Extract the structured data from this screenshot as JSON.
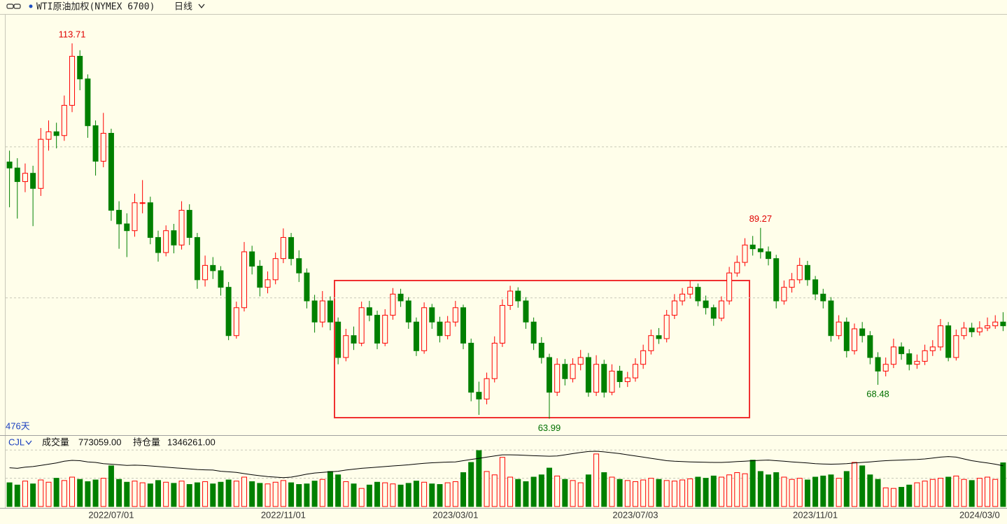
{
  "chart_data": [
    {
      "type": "candlestick",
      "title": "WTI原油加权(NYMEX 6700)",
      "period": "日线",
      "count_label": "476天",
      "categories": [
        null,
        null,
        null,
        null,
        null,
        null,
        null,
        null,
        null,
        null,
        null,
        null,
        null,
        "2022/07/01",
        null,
        null,
        null,
        null,
        null,
        null,
        null,
        null,
        null,
        null,
        null,
        null,
        null,
        null,
        null,
        null,
        null,
        null,
        null,
        null,
        null,
        "2022/11/01",
        null,
        null,
        null,
        null,
        null,
        null,
        null,
        null,
        null,
        null,
        null,
        null,
        null,
        null,
        null,
        null,
        null,
        null,
        null,
        null,
        null,
        "2023/03/01",
        null,
        null,
        null,
        null,
        null,
        null,
        null,
        null,
        null,
        null,
        null,
        null,
        null,
        null,
        null,
        null,
        null,
        null,
        null,
        null,
        null,
        null,
        "2023/07/03",
        null,
        null,
        null,
        null,
        null,
        null,
        null,
        null,
        null,
        null,
        null,
        null,
        null,
        null,
        null,
        null,
        null,
        null,
        null,
        null,
        null,
        null,
        "2023/11/01",
        null,
        null,
        null,
        null,
        null,
        null,
        null,
        null,
        null,
        null,
        null,
        null,
        null,
        null,
        null,
        null,
        null,
        null,
        null,
        null,
        "2024/03/0",
        null,
        null,
        null
      ],
      "open": [
        98,
        97.2,
        95.4,
        96.5,
        94.5,
        101,
        102,
        101.5,
        105.5,
        112,
        109,
        102.8,
        98.1,
        101.8,
        91.6,
        89.8,
        88.9,
        92.6,
        92.6,
        88,
        86,
        88.9,
        87,
        91.6,
        88,
        82.4,
        84.3,
        83.6,
        81.4,
        75,
        78.7,
        86.1,
        84.2,
        81.4,
        82.4,
        85.2,
        88,
        85.2,
        83.3,
        79.6,
        76.8,
        79.6,
        76.8,
        72.1,
        75,
        74,
        78.7,
        77.7,
        74,
        77.7,
        80.5,
        79.6,
        76.8,
        73,
        78.7,
        76.8,
        75,
        76.8,
        78.7,
        74,
        67.5,
        66.6,
        69.3,
        74,
        79,
        80.9,
        79.6,
        76.8,
        74,
        72.1,
        67.5,
        71.2,
        69.3,
        71.2,
        72.1,
        67.5,
        71.2,
        67.5,
        70.3,
        68.9,
        69.4,
        71.2,
        73,
        75,
        74.6,
        77.7,
        79.6,
        80.5,
        81.4,
        79.6,
        78.7,
        77.3,
        79.6,
        83.3,
        84.7,
        87,
        86.5,
        86.1,
        85.2,
        79.6,
        81.4,
        82.4,
        84.3,
        82.4,
        80.5,
        79.6,
        75,
        76.8,
        73,
        75.9,
        75,
        72.1,
        70.3,
        71.2,
        73.5,
        72.6,
        71.2,
        71.6,
        73,
        73.5,
        76.3,
        72.1,
        75,
        76,
        75.5,
        76,
        76.3,
        76.8
      ],
      "high": [
        99.5,
        98.5,
        97.8,
        97.5,
        102.5,
        103.5,
        103.2,
        106.8,
        113.71,
        112.8,
        109.6,
        103.5,
        104.5,
        102.4,
        92.8,
        91.2,
        93.8,
        95.6,
        93.4,
        88.9,
        89.6,
        89.8,
        92.8,
        92.4,
        88.6,
        85.6,
        85.4,
        84.2,
        82.1,
        79.5,
        87.4,
        86.9,
        85,
        83.5,
        86,
        89.2,
        88.6,
        86.3,
        83.9,
        80.4,
        80.9,
        80.2,
        77.4,
        75.9,
        76.2,
        79.5,
        79.6,
        78.3,
        78.5,
        81.3,
        81.2,
        80.1,
        77.4,
        79.4,
        79.2,
        77.5,
        77.6,
        79.6,
        79.1,
        74.6,
        68.9,
        70.1,
        74.9,
        79.8,
        81.6,
        81.4,
        80.1,
        77.4,
        74.8,
        72.6,
        72,
        71.9,
        72,
        73.1,
        72.7,
        72.4,
        71.8,
        71.2,
        71,
        70.2,
        72,
        73.8,
        75.8,
        76,
        78.4,
        80.5,
        81.3,
        82.3,
        81.9,
        80.3,
        79.1,
        80.2,
        84.1,
        85.6,
        87.9,
        88.2,
        89.27,
        86.8,
        85.7,
        82.3,
        83.3,
        85.3,
        84.9,
        82.9,
        81.2,
        80.1,
        77.7,
        77.4,
        76.6,
        76.8,
        75.6,
        72.8,
        72.1,
        74.6,
        74.1,
        73.2,
        72.5,
        73.8,
        74.4,
        77.2,
        76.8,
        75.8,
        76.8,
        76.7,
        76.9,
        77.4,
        77.7,
        78.1
      ],
      "low": [
        92,
        90.5,
        94,
        89.5,
        93.5,
        99.5,
        99.8,
        100.8,
        104.6,
        107.5,
        101.2,
        96.2,
        97.3,
        90.2,
        86.5,
        85.4,
        88.1,
        91.2,
        87.1,
        84.8,
        85.5,
        85.9,
        86.4,
        87,
        81.2,
        81.5,
        82.5,
        80.3,
        74.4,
        74.6,
        78.2,
        83.1,
        80.2,
        80.6,
        81.8,
        84.6,
        84.3,
        82.1,
        78.6,
        75.4,
        76.1,
        75.7,
        71.2,
        71.6,
        73.1,
        73.6,
        76.9,
        73.2,
        73.6,
        77.1,
        78.8,
        75.9,
        72.3,
        72.6,
        75.9,
        74.1,
        74.5,
        76.2,
        73.2,
        66.3,
        64.5,
        65.9,
        68.8,
        73.5,
        78.4,
        78.7,
        75.9,
        73.1,
        71.3,
        63.99,
        67,
        68.4,
        68.8,
        70.4,
        66.9,
        67,
        66.8,
        67.1,
        68.1,
        68.2,
        68.9,
        70.6,
        72.5,
        73.9,
        74.1,
        77.2,
        79,
        79.9,
        78.9,
        77.8,
        76.3,
        76.9,
        79.1,
        82.8,
        84.2,
        85.6,
        85.2,
        84.3,
        78.6,
        79.1,
        80.7,
        81.9,
        81.6,
        79.7,
        78.6,
        74.2,
        74.5,
        72.1,
        72.5,
        74.1,
        71.2,
        68.48,
        69.6,
        70.7,
        71.8,
        70.4,
        70.6,
        71.1,
        72.3,
        73,
        71.6,
        71.7,
        74.5,
        74.8,
        75,
        75.6,
        75.9,
        75.6
      ],
      "close": [
        97.2,
        95.4,
        96.5,
        94.5,
        101,
        102,
        101.5,
        105.5,
        112,
        109,
        102.8,
        98.1,
        101.8,
        91.6,
        89.8,
        88.9,
        92.6,
        92.6,
        88,
        86,
        88.9,
        87,
        91.6,
        88,
        82.4,
        84.3,
        83.6,
        81.4,
        75,
        78.7,
        86.1,
        84.2,
        81.4,
        82.4,
        85.2,
        88,
        85.2,
        83.3,
        79.6,
        76.8,
        79.6,
        76.8,
        72.1,
        75,
        74,
        78.7,
        77.7,
        74,
        77.7,
        80.5,
        79.6,
        76.8,
        73,
        78.7,
        76.8,
        75,
        76.8,
        78.7,
        74,
        67.5,
        66.6,
        69.3,
        74,
        79,
        80.9,
        79.6,
        76.8,
        74,
        72.1,
        67.5,
        71.2,
        69.3,
        71.2,
        72.1,
        67.5,
        71.2,
        67.5,
        70.3,
        68.9,
        69.4,
        71.2,
        73,
        75,
        74.6,
        77.7,
        79.6,
        80.5,
        81.4,
        79.6,
        78.7,
        77.3,
        79.6,
        83.3,
        84.7,
        87,
        86.5,
        86.1,
        85.2,
        79.6,
        81.4,
        82.4,
        84.3,
        82.4,
        80.5,
        79.6,
        75,
        76.8,
        73,
        75.9,
        75,
        72.1,
        70.3,
        71.2,
        73.5,
        72.6,
        71.2,
        71.6,
        73,
        73.5,
        76.3,
        72.1,
        75,
        76,
        75.5,
        76,
        76.3,
        76.8,
        76.3
      ],
      "ylim": [
        62,
        117.6
      ],
      "yticks": [
        80,
        100
      ],
      "grid": true,
      "up_color": "#ff0000",
      "down_color": "#008000",
      "label_color_high": "#e00000",
      "label_color_low": "#007000"
    },
    {
      "type": "bar",
      "title": "CJL",
      "series": [
        {
          "name": "成交量",
          "color_up": "#ff0000",
          "color_down": "#008000",
          "values": [
            420000,
            380000,
            450000,
            400000,
            470000,
            430000,
            500000,
            460000,
            520000,
            480000,
            440000,
            470000,
            500000,
            720000,
            480000,
            430000,
            450000,
            420000,
            400000,
            460000,
            430000,
            410000,
            450000,
            390000,
            420000,
            440000,
            400000,
            430000,
            470000,
            450000,
            520000,
            440000,
            410000,
            400000,
            430000,
            460000,
            420000,
            390000,
            400000,
            450000,
            480000,
            620000,
            560000,
            440000,
            400000,
            320000,
            380000,
            430000,
            420000,
            400000,
            380000,
            410000,
            450000,
            430000,
            400000,
            390000,
            420000,
            440000,
            600000,
            780000,
            990000,
            620000,
            560000,
            870000,
            520000,
            480000,
            440000,
            520000,
            560000,
            680000,
            540000,
            480000,
            460000,
            420000,
            560000,
            930000,
            600000,
            520000,
            480000,
            460000,
            440000,
            470000,
            500000,
            480000,
            460000,
            450000,
            470000,
            490000,
            520000,
            500000,
            540000,
            520000,
            560000,
            600000,
            580000,
            820000,
            620000,
            560000,
            600000,
            520000,
            480000,
            500000,
            470000,
            520000,
            540000,
            560000,
            500000,
            620000,
            780000,
            720000,
            560000,
            480000,
            330000,
            320000,
            340000,
            380000,
            420000,
            450000,
            480000,
            500000,
            520000,
            540000,
            480000,
            460000,
            500000,
            520000,
            480000,
            773059
          ]
        },
        {
          "name": "持仓量",
          "color": "#000000",
          "axis": "y2",
          "values": [
            1330000,
            1325000,
            1335000,
            1340000,
            1350000,
            1360000,
            1370000,
            1385000,
            1393000,
            1390000,
            1380000,
            1375000,
            1365000,
            1360000,
            1355000,
            1350000,
            1352000,
            1350000,
            1345000,
            1340000,
            1335000,
            1330000,
            1325000,
            1320000,
            1315000,
            1312000,
            1310000,
            1300000,
            1295000,
            1290000,
            1280000,
            1270000,
            1262000,
            1255000,
            1250000,
            1245000,
            1250000,
            1262000,
            1275000,
            1285000,
            1290000,
            1295000,
            1300000,
            1310000,
            1318000,
            1325000,
            1330000,
            1335000,
            1340000,
            1345000,
            1350000,
            1355000,
            1362000,
            1368000,
            1372000,
            1375000,
            1378000,
            1380000,
            1390000,
            1400000,
            1410000,
            1420000,
            1430000,
            1440000,
            1440000,
            1438000,
            1435000,
            1432000,
            1430000,
            1428000,
            1430000,
            1440000,
            1450000,
            1460000,
            1468000,
            1470000,
            1465000,
            1458000,
            1450000,
            1440000,
            1430000,
            1420000,
            1410000,
            1400000,
            1390000,
            1385000,
            1382000,
            1380000,
            1378000,
            1376000,
            1375000,
            1375000,
            1378000,
            1382000,
            1386000,
            1390000,
            1393000,
            1395000,
            1390000,
            1385000,
            1380000,
            1375000,
            1370000,
            1365000,
            1362000,
            1360000,
            1362000,
            1365000,
            1370000,
            1375000,
            1380000,
            1385000,
            1390000,
            1393000,
            1395000,
            1398000,
            1400000,
            1405000,
            1412000,
            1420000,
            1425000,
            1420000,
            1405000,
            1390000,
            1380000,
            1370000,
            1360000,
            1346261
          ]
        }
      ],
      "legend_values": [
        "773059.00",
        "1346261.00"
      ],
      "ylim": [
        0,
        1040000
      ],
      "yticks": [
        500000,
        1000000
      ],
      "y2lim": [
        1000000,
        1500000
      ],
      "grid": true
    }
  ]
}
